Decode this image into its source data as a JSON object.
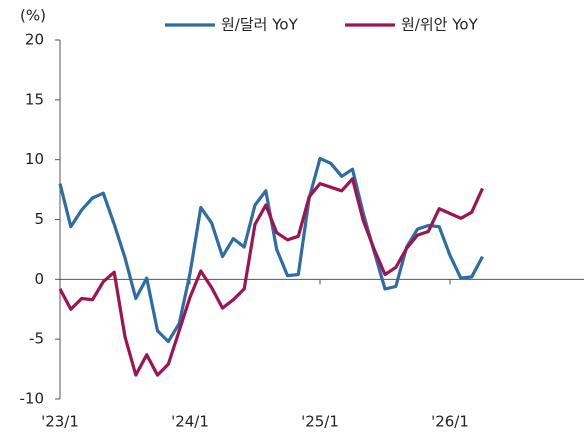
{
  "chart_data": {
    "type": "line",
    "y_unit_label": "(%)",
    "categories": [
      "'23/1",
      null,
      null,
      null,
      null,
      null,
      null,
      null,
      null,
      null,
      null,
      null,
      "'24/1",
      null,
      null,
      null,
      null,
      null,
      null,
      null,
      null,
      null,
      null,
      null,
      "'25/1",
      null,
      null,
      null,
      null,
      null,
      null,
      null,
      null,
      null,
      null,
      null,
      "'26/1",
      null,
      null,
      null,
      null,
      null,
      null,
      null,
      null,
      null,
      null,
      null,
      null
    ],
    "series": [
      {
        "name": "원/달러 YoY",
        "color": "#2e6ca3",
        "values": [
          8.0,
          4.4,
          5.8,
          6.8,
          7.2,
          4.6,
          1.8,
          -1.6,
          0.1,
          -4.3,
          -5.2,
          -3.7,
          0.5,
          6.0,
          4.7,
          1.9,
          3.4,
          2.7,
          6.2,
          7.4,
          2.5,
          0.3,
          0.4,
          6.8,
          10.1,
          9.7,
          8.6,
          9.2,
          5.5,
          2.3,
          -0.8,
          -0.6,
          2.7,
          4.2,
          4.5,
          4.4,
          2.0,
          0.1,
          0.2,
          1.9,
          null,
          null,
          null,
          null,
          null,
          null,
          null,
          null,
          null
        ]
      },
      {
        "name": "원/위안 YoY",
        "color": "#9e1451",
        "values": [
          -0.8,
          -2.5,
          -1.6,
          -1.7,
          -0.2,
          0.6,
          -4.8,
          -8.0,
          -6.3,
          -8.0,
          -7.1,
          -4.3,
          -1.5,
          0.7,
          -0.7,
          -2.4,
          -1.7,
          -0.8,
          4.6,
          6.2,
          3.9,
          3.3,
          3.6,
          6.9,
          8.0,
          7.7,
          7.4,
          8.4,
          4.9,
          2.5,
          0.4,
          1.0,
          2.6,
          3.7,
          4.0,
          5.9,
          5.5,
          5.1,
          5.6,
          7.6,
          null,
          null,
          null,
          null,
          null,
          null,
          null,
          null,
          null
        ]
      }
    ],
    "ylim": [
      -10,
      20
    ],
    "yticks": [
      -10,
      -5,
      0,
      5,
      10,
      15,
      20
    ],
    "grid": false,
    "legend": "top"
  }
}
